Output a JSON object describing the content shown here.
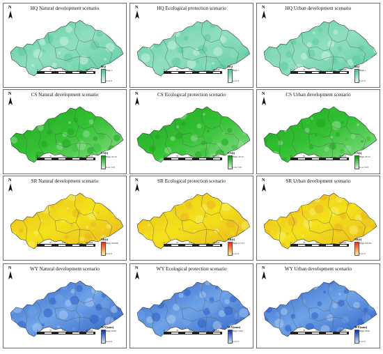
{
  "rows": [
    {
      "key": "hq",
      "colors": {
        "fill": "#8fdfc0",
        "shade": "#5ccb9d",
        "light": "#c9f2e1",
        "ramp_top": "#4fc08f",
        "ramp_bottom": "#e8faf2"
      },
      "legend_title": "HQ",
      "legend_high": "High 1",
      "legend_low": "Low 0",
      "panels": [
        {
          "title": "HQ Natural development scenario"
        },
        {
          "title": "HQ Ecological protection scenario"
        },
        {
          "title": "HQ Urban development scenario"
        }
      ]
    },
    {
      "key": "cs",
      "colors": {
        "fill": "#34c134",
        "shade": "#1fa51f",
        "light": "#8fe08f",
        "ramp_top": "#0f8f0f",
        "ramp_bottom": "#d8f7d8"
      },
      "legend_title": "CS(t)",
      "legend_high": "High 23.22",
      "legend_low": "Low 3.91",
      "panels": [
        {
          "title": "CS Natural development scenario"
        },
        {
          "title": "CS Ecological protection scenario"
        },
        {
          "title": "CS Urban development scenario"
        }
      ]
    },
    {
      "key": "sr",
      "colors": {
        "fill": "#f3e21a",
        "shade": "#e9b31f",
        "light": "#f8ef6a",
        "ramp_top": "#e03016",
        "ramp_bottom": "#fff3a0"
      },
      "legend_title": "SR(t)",
      "legend_high": "High",
      "legend_low": "Low 0",
      "panels": [
        {
          "title": "SR Natural development scenario",
          "legend_high": "High 0.9396"
        },
        {
          "title": "SR Ecological protection scenario",
          "legend_high": "High 0.7157"
        },
        {
          "title": "SR Urban development scenario",
          "legend_high": "High 0.8165"
        }
      ]
    },
    {
      "key": "wy",
      "colors": {
        "fill": "#6fa3e6",
        "shade": "#2d5fc7",
        "light": "#a9c9f2",
        "ramp_top": "#0d2f9c",
        "ramp_bottom": "#cfe2fa"
      },
      "legend_title": "WY(mm)",
      "legend_high": "High",
      "legend_low": "Low 0",
      "panels": [
        {
          "title": "WY Natural development scenario",
          "legend_high": "High 2036"
        },
        {
          "title": "WY Ecological protection scenario",
          "legend_high": "High 1993"
        },
        {
          "title": "WY Urban development scenario",
          "legend_high": "High 2020"
        }
      ]
    }
  ],
  "north_label": "N",
  "scale_labels": [
    "0",
    "50",
    "100",
    "200 KM"
  ]
}
